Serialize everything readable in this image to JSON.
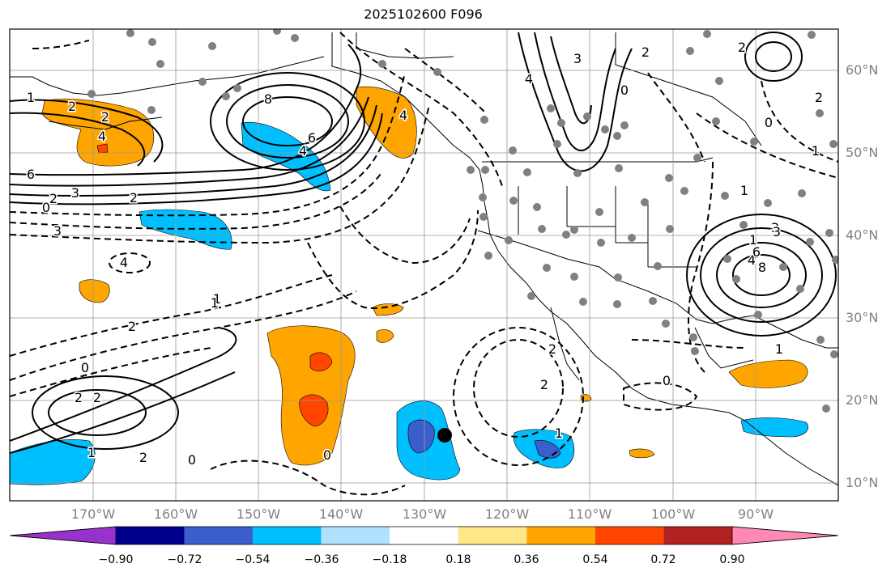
{
  "title": "2025102600 F096",
  "map": {
    "projection": "lat-lon",
    "lon_range": [
      -180,
      -80
    ],
    "lat_range": [
      8,
      65
    ],
    "gridlines": true,
    "lat_labels": [
      "60°N",
      "50°N",
      "40°N",
      "30°N",
      "20°N",
      "10°N"
    ],
    "lon_labels": [
      "170°W",
      "160°W",
      "150°W",
      "140°W",
      "130°W",
      "120°W",
      "110°W",
      "100°W",
      "90°W"
    ],
    "contour_labels": [
      "1",
      "2",
      "2",
      "4",
      "6",
      "8",
      "6",
      "4",
      "0",
      "2",
      "3",
      "2",
      "3",
      "4",
      "2",
      "1",
      "4",
      "3",
      "4",
      "0",
      "2",
      "1",
      "0",
      "1",
      "2",
      "2",
      "0",
      "2",
      "2",
      "3",
      "1",
      "0",
      "4",
      "3",
      "6",
      "8",
      "0",
      "2",
      "1",
      "2",
      "1",
      "0",
      "1",
      "2",
      "0",
      "1"
    ],
    "marker": "tropical-cyclone-center"
  },
  "colorbar": {
    "boundaries": [
      "−0.90",
      "−0.72",
      "−0.54",
      "−0.36",
      "−0.18",
      "0.18",
      "0.36",
      "0.54",
      "0.72",
      "0.90"
    ],
    "colors": [
      "#9932cc",
      "#00008b",
      "#3a5fcd",
      "#00bfff",
      "#b0e2ff",
      "#ffffff",
      "#ffe788",
      "#ffa500",
      "#ff4500",
      "#b22222",
      "#ff88b4"
    ]
  }
}
